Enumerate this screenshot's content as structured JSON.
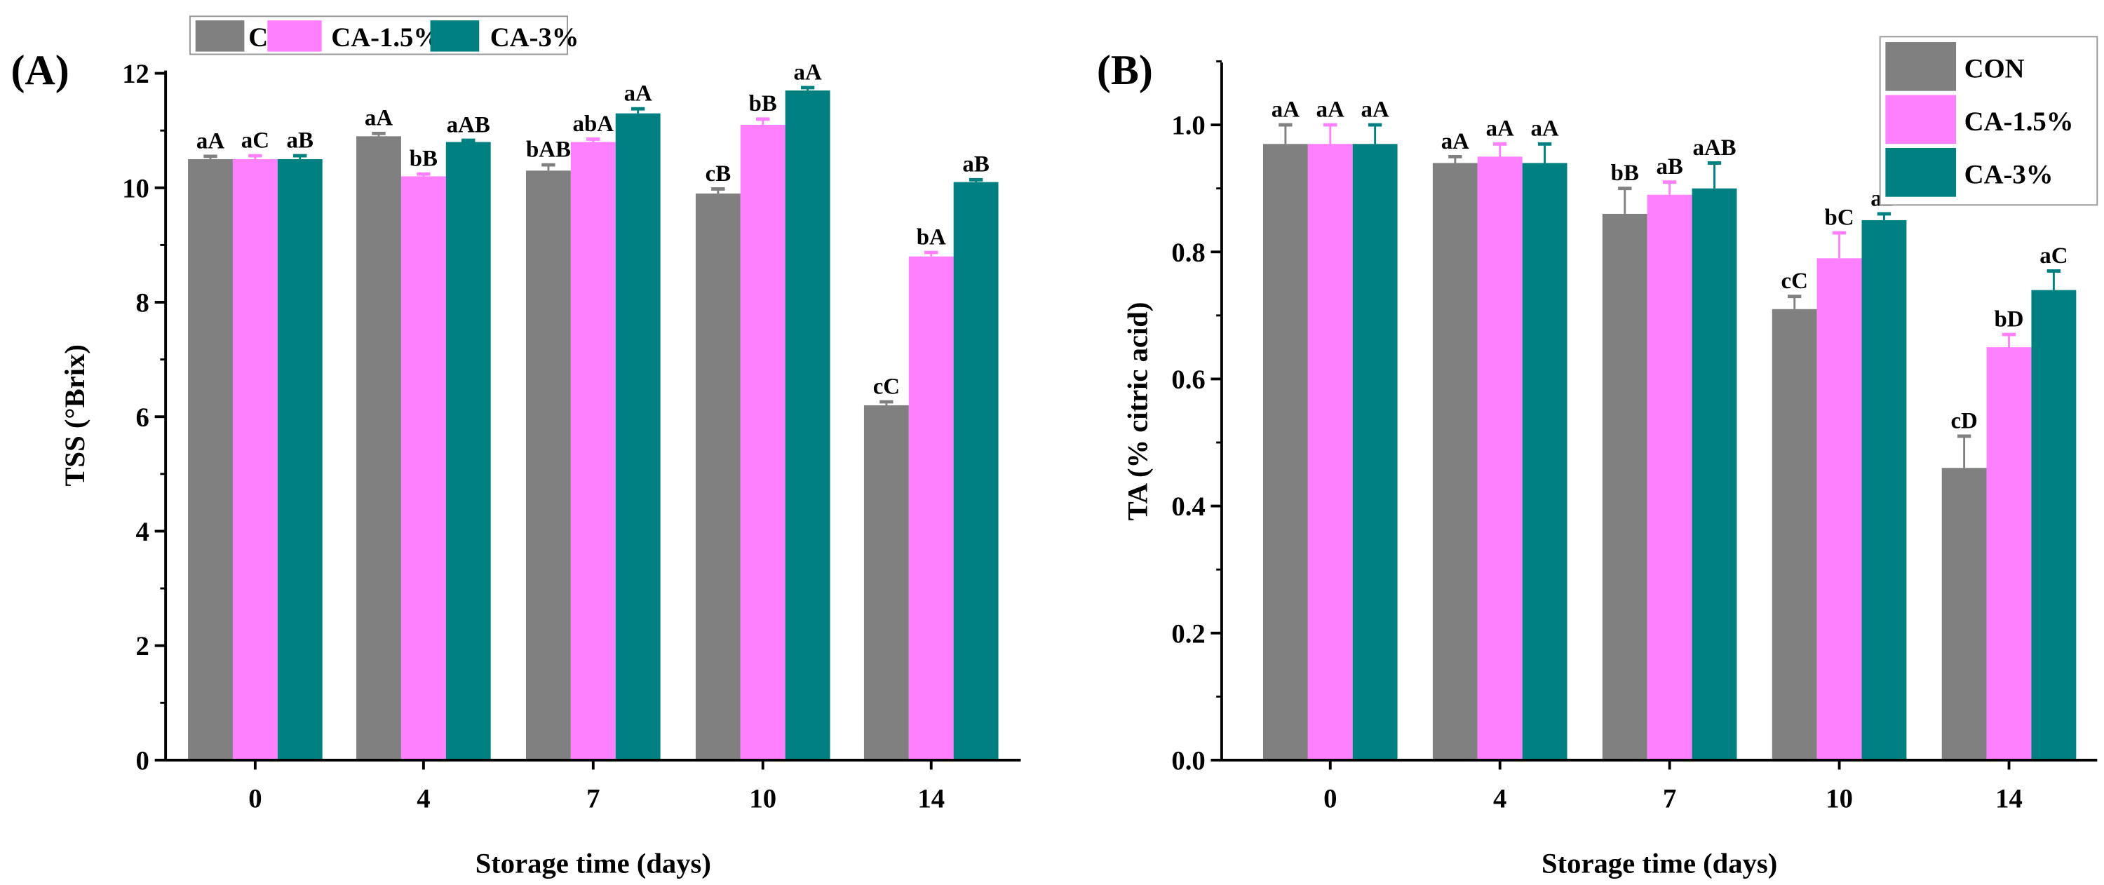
{
  "colors": {
    "CON": "#808080",
    "CA-1.5%": "#ff80ff",
    "CA-3%": "#008080"
  },
  "chart_data": [
    {
      "type": "bar",
      "panel_label": "(A)",
      "xlabel": "Storage time (days)",
      "ylabel": "TSS (°Brix)",
      "categories": [
        "0",
        "4",
        "7",
        "10",
        "14"
      ],
      "ylim": [
        0,
        12
      ],
      "yticks": [
        "0",
        "2",
        "4",
        "6",
        "8",
        "10",
        "12"
      ],
      "ytick_values": [
        0,
        2,
        4,
        6,
        8,
        10,
        12
      ],
      "legend_position": "top",
      "series": [
        {
          "name": "CON",
          "values": [
            10.5,
            10.9,
            10.3,
            9.9,
            6.2
          ],
          "errors": [
            0.05,
            0.05,
            0.1,
            0.08,
            0.06
          ],
          "letters": [
            "aA",
            "aA",
            "bAB",
            "cB",
            "cC"
          ]
        },
        {
          "name": "CA-1.5%",
          "values": [
            10.5,
            10.2,
            10.8,
            11.1,
            8.8
          ],
          "errors": [
            0.06,
            0.04,
            0.05,
            0.1,
            0.07
          ],
          "letters": [
            "aC",
            "bB",
            "abA",
            "bB",
            "bA"
          ]
        },
        {
          "name": "CA-3%",
          "values": [
            10.5,
            10.8,
            11.3,
            11.7,
            10.1
          ],
          "errors": [
            0.06,
            0.03,
            0.08,
            0.05,
            0.04
          ],
          "letters": [
            "aB",
            "aAB",
            "aA",
            "aA",
            "aB"
          ]
        }
      ]
    },
    {
      "type": "bar",
      "panel_label": "(B)",
      "xlabel": "Storage time (days)",
      "ylabel": "TA (% citric acid)",
      "categories": [
        "0",
        "4",
        "7",
        "10",
        "14"
      ],
      "ylim": [
        0,
        1.1
      ],
      "yticks": [
        "0.0",
        "0.2",
        "0.4",
        "0.6",
        "0.8",
        "1.0"
      ],
      "ytick_values": [
        0,
        0.2,
        0.4,
        0.6,
        0.8,
        1.0
      ],
      "legend_position": "top-right",
      "series": [
        {
          "name": "CON",
          "values": [
            0.97,
            0.94,
            0.86,
            0.71,
            0.46
          ],
          "errors": [
            0.03,
            0.01,
            0.04,
            0.02,
            0.05
          ],
          "letters": [
            "aA",
            "aA",
            "bB",
            "cC",
            "cD"
          ]
        },
        {
          "name": "CA-1.5%",
          "values": [
            0.97,
            0.95,
            0.89,
            0.79,
            0.65
          ],
          "errors": [
            0.03,
            0.02,
            0.02,
            0.04,
            0.02
          ],
          "letters": [
            "aA",
            "aA",
            "aB",
            "bC",
            "bD"
          ]
        },
        {
          "name": "CA-3%",
          "values": [
            0.97,
            0.94,
            0.9,
            0.85,
            0.74
          ],
          "errors": [
            0.03,
            0.03,
            0.04,
            0.01,
            0.03
          ],
          "letters": [
            "aA",
            "aA",
            "aAB",
            "aB",
            "aC"
          ]
        }
      ]
    }
  ]
}
